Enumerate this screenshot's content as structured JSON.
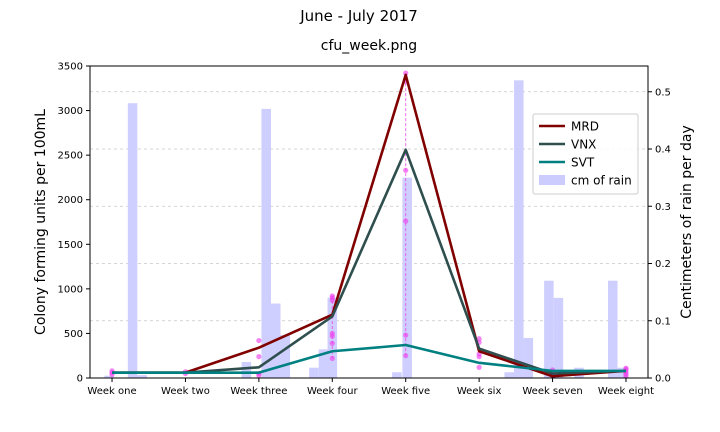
{
  "chart_data": {
    "type": "line",
    "suptitle": "June - July 2017",
    "title": "cfu_week.png",
    "ylabel": "Colony forming units per 100mL",
    "y2label": "Centimeters of rain per day",
    "ylim": [
      0,
      3500
    ],
    "y2lim": [
      0,
      0.545
    ],
    "xlim": [
      -0.3,
      7.3
    ],
    "categories": [
      "Week one",
      "Week two",
      "Week three",
      "Week four",
      "Week five",
      "Week six",
      "Week seven",
      "Week eight"
    ],
    "yticks": [
      0,
      500,
      1000,
      1500,
      2000,
      2500,
      3000,
      3500
    ],
    "y2ticks": [
      0.0,
      0.1,
      0.2,
      0.3,
      0.4,
      0.5
    ],
    "y2_gridlines": [
      0.1,
      0.2,
      0.3,
      0.4,
      0.5
    ],
    "legend_position": "right",
    "series": [
      {
        "name": "MRD",
        "color": "#800000",
        "values": [
          60,
          60,
          340,
          710,
          3400,
          300,
          20,
          80
        ]
      },
      {
        "name": "VNX",
        "color": "#2f4f4f",
        "values": [
          60,
          60,
          120,
          690,
          2560,
          330,
          50,
          80
        ]
      },
      {
        "name": "SVT",
        "color": "#008080",
        "values": [
          60,
          60,
          60,
          300,
          370,
          170,
          80,
          80
        ]
      }
    ],
    "rain": {
      "name": "cm of rain",
      "color": "#ccccff",
      "bars": [
        {
          "x": -0.04,
          "value": 0.004
        },
        {
          "x": 0.28,
          "value": 0.48
        },
        {
          "x": 0.41,
          "value": 0.005
        },
        {
          "x": 1.83,
          "value": 0.028
        },
        {
          "x": 2.1,
          "value": 0.47
        },
        {
          "x": 2.23,
          "value": 0.13
        },
        {
          "x": 2.36,
          "value": 0.075
        },
        {
          "x": 2.75,
          "value": 0.018
        },
        {
          "x": 2.88,
          "value": 0.05
        },
        {
          "x": 3.0,
          "value": 0.14
        },
        {
          "x": 3.88,
          "value": 0.01
        },
        {
          "x": 4.02,
          "value": 0.35
        },
        {
          "x": 5.41,
          "value": 0.01
        },
        {
          "x": 5.54,
          "value": 0.52
        },
        {
          "x": 5.67,
          "value": 0.07
        },
        {
          "x": 5.95,
          "value": 0.17
        },
        {
          "x": 6.08,
          "value": 0.14
        },
        {
          "x": 6.36,
          "value": 0.018
        },
        {
          "x": 6.82,
          "value": 0.17
        },
        {
          "x": 6.95,
          "value": 0.018
        }
      ]
    },
    "samples": {
      "color": "#ee44ee",
      "points": [
        {
          "week": 0,
          "values": [
            40,
            60,
            80
          ]
        },
        {
          "week": 1,
          "values": [
            50,
            70
          ]
        },
        {
          "week": 2,
          "values": [
            30,
            50,
            240,
            420
          ]
        },
        {
          "week": 3,
          "values": [
            220,
            390,
            470,
            500,
            870,
            900,
            920
          ]
        },
        {
          "week": 4,
          "values": [
            250,
            480,
            1760,
            2330,
            3330,
            3420
          ]
        },
        {
          "week": 5,
          "values": [
            120,
            240,
            270,
            400,
            440
          ]
        },
        {
          "week": 6,
          "values": [
            30,
            50,
            70,
            90
          ]
        },
        {
          "week": 7,
          "values": [
            20,
            40,
            60,
            80,
            100,
            110
          ]
        }
      ]
    }
  }
}
